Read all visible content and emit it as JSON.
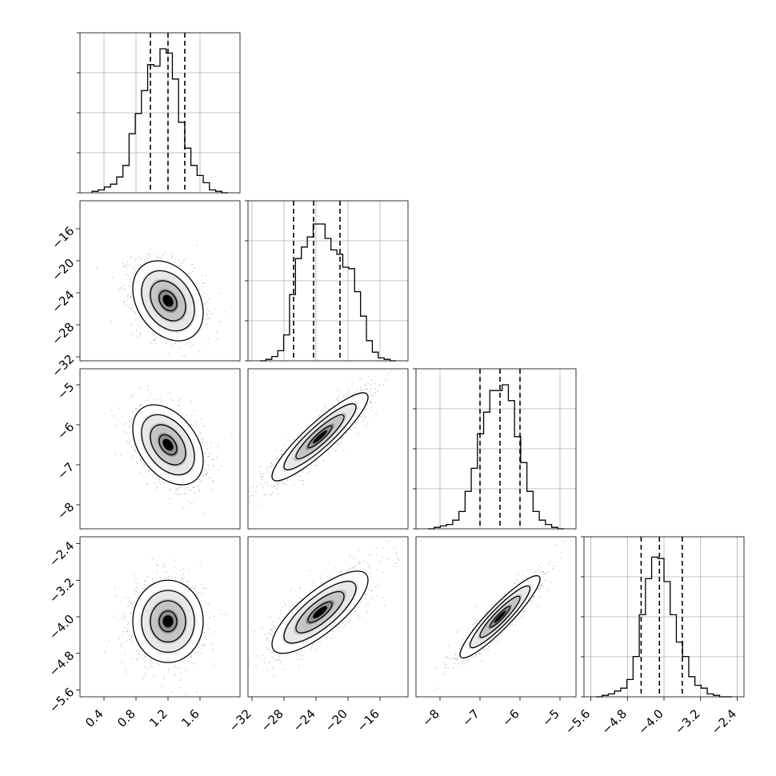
{
  "chart_data": {
    "type": "corner",
    "parameters": [
      {
        "key": "p0",
        "range": [
          0.1,
          2.1
        ],
        "ticks": [
          "0.4",
          "0.8",
          "1.2",
          "1.6"
        ],
        "quantiles": [
          0.98,
          1.2,
          1.41
        ]
      },
      {
        "key": "p1",
        "range": [
          -32.5,
          -12.5
        ],
        "ticks": [
          "−32",
          "−28",
          "−24",
          "−20",
          "−16"
        ],
        "quantiles": [
          -26.8,
          -24.3,
          -21.0
        ]
      },
      {
        "key": "p2",
        "range": [
          -8.6,
          -4.6
        ],
        "ticks": [
          "−8",
          "−7",
          "−6",
          "−5"
        ],
        "quantiles": [
          -7.0,
          -6.5,
          -6.0
        ]
      },
      {
        "key": "p3",
        "range": [
          -5.75,
          -2.25
        ],
        "ticks": [
          "−5.6",
          "−4.8",
          "−4.0",
          "−3.2",
          "−2.4"
        ],
        "quantiles": [
          -4.5,
          -4.1,
          -3.6
        ]
      }
    ],
    "histograms": [
      {
        "param": "p0",
        "counts": [
          0.01,
          0.02,
          0.04,
          0.06,
          0.11,
          0.19,
          0.41,
          0.55,
          0.71,
          0.89,
          0.88,
          1.0,
          0.97,
          0.79,
          0.49,
          0.31,
          0.19,
          0.12,
          0.07,
          0.02,
          0.01,
          0.0
        ]
      },
      {
        "param": "p1",
        "counts": [
          0.0,
          0.01,
          0.03,
          0.07,
          0.18,
          0.46,
          0.71,
          0.79,
          0.86,
          0.95,
          0.95,
          0.85,
          0.77,
          0.74,
          0.65,
          0.64,
          0.48,
          0.31,
          0.14,
          0.06,
          0.02,
          0.01,
          0.0
        ]
      },
      {
        "param": "p2",
        "counts": [
          0.0,
          0.01,
          0.02,
          0.03,
          0.06,
          0.12,
          0.26,
          0.42,
          0.66,
          0.81,
          0.96,
          0.96,
          1.0,
          0.89,
          0.64,
          0.46,
          0.26,
          0.12,
          0.06,
          0.03,
          0.01,
          0.0
        ]
      },
      {
        "param": "p3",
        "counts": [
          0.0,
          0.01,
          0.02,
          0.04,
          0.06,
          0.12,
          0.28,
          0.57,
          0.82,
          0.97,
          0.96,
          0.8,
          0.57,
          0.38,
          0.28,
          0.14,
          0.08,
          0.06,
          0.02,
          0.01,
          0.0,
          0.0
        ]
      }
    ],
    "pairs": [
      {
        "x": "p0",
        "y": "p1",
        "mean": [
          1.2,
          -25.0
        ],
        "sd": [
          0.22,
          2.5
        ],
        "corr": -0.3
      },
      {
        "x": "p0",
        "y": "p2",
        "mean": [
          1.2,
          -6.5
        ],
        "sd": [
          0.22,
          0.5
        ],
        "corr": -0.4
      },
      {
        "x": "p0",
        "y": "p3",
        "mean": [
          1.2,
          -4.1
        ],
        "sd": [
          0.22,
          0.45
        ],
        "corr": 0.0
      },
      {
        "x": "p1",
        "y": "p2",
        "mean": [
          -23.5,
          -6.3
        ],
        "sd": [
          3.0,
          0.55
        ],
        "corr": 0.9
      },
      {
        "x": "p1",
        "y": "p3",
        "mean": [
          -23.5,
          -3.9
        ],
        "sd": [
          3.0,
          0.45
        ],
        "corr": 0.78
      },
      {
        "x": "p2",
        "y": "p3",
        "mean": [
          -6.5,
          -4.0
        ],
        "sd": [
          0.5,
          0.45
        ],
        "corr": 0.92
      }
    ],
    "contour_levels": [
      0.5,
      1.0,
      1.5
    ],
    "grid": true,
    "colors": {
      "line": "#000000",
      "grid": "#b0b0b0",
      "points": "#808080",
      "density_max": "#000000"
    }
  }
}
